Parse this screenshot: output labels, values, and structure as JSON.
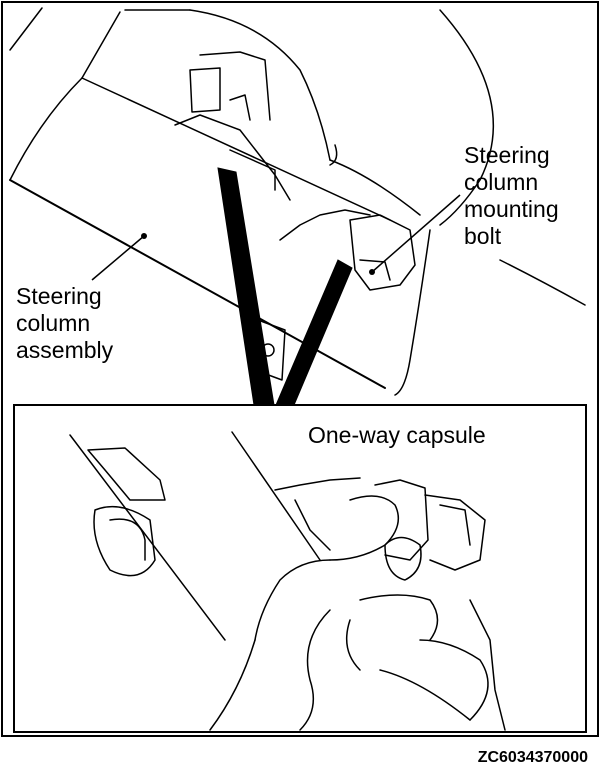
{
  "labels": {
    "steering_column_mounting_bolt": [
      "Steering",
      "column",
      "mounting",
      "bolt"
    ],
    "steering_column_assembly": [
      "Steering",
      "column",
      "assembly"
    ],
    "one_way_capsule": "One-way capsule"
  },
  "figure_code": "ZC6034370000",
  "colors": {
    "ink": "#000000",
    "paper": "#ffffff"
  }
}
